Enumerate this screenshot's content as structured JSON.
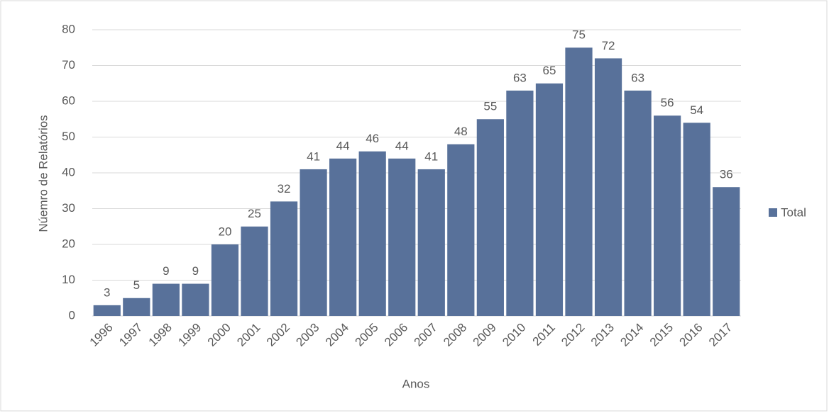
{
  "chart_data": {
    "type": "bar",
    "categories": [
      "1996",
      "1997",
      "1998",
      "1999",
      "2000",
      "2001",
      "2002",
      "2003",
      "2004",
      "2005",
      "2006",
      "2007",
      "2008",
      "2009",
      "2010",
      "2011",
      "2012",
      "2013",
      "2014",
      "2015",
      "2016",
      "2017"
    ],
    "series": [
      {
        "name": "Total",
        "color": "#58719a",
        "values": [
          3,
          5,
          9,
          9,
          20,
          25,
          32,
          41,
          44,
          46,
          44,
          41,
          48,
          55,
          63,
          65,
          75,
          72,
          63,
          56,
          54,
          36
        ]
      }
    ],
    "ylim": [
      0,
      80
    ],
    "yticks": [
      0,
      10,
      20,
      30,
      40,
      50,
      60,
      70,
      80
    ],
    "xlabel": "Anos",
    "ylabel": "Núemro de Relatórios",
    "grid": true,
    "legend": "right"
  }
}
